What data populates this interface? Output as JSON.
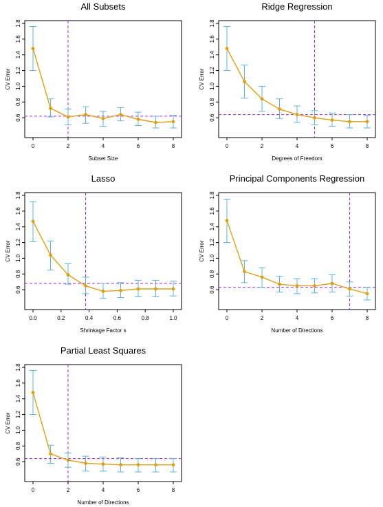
{
  "colors": {
    "line": "#E69F00",
    "errorbar": "#56B4E9",
    "reference": "#A020F0",
    "axis": "#000000"
  },
  "chart_data": [
    {
      "type": "line",
      "title": "All Subsets",
      "xlabel": "Subset Size",
      "ylabel": "CV Error",
      "xlim": [
        0,
        8
      ],
      "ylim": [
        0.4,
        1.8
      ],
      "xticks": [
        "0",
        "2",
        "4",
        "6",
        "8"
      ],
      "yticks": [
        "0.6",
        "0.8",
        "1.0",
        "1.2",
        "1.4",
        "1.6",
        "1.8"
      ],
      "x": [
        0,
        1,
        2,
        3,
        4,
        5,
        6,
        7,
        8
      ],
      "y": [
        1.48,
        0.72,
        0.61,
        0.64,
        0.59,
        0.64,
        0.58,
        0.54,
        0.55
      ],
      "err_low": [
        1.2,
        0.61,
        0.51,
        0.53,
        0.49,
        0.56,
        0.5,
        0.47,
        0.47
      ],
      "err_high": [
        1.76,
        0.84,
        0.71,
        0.74,
        0.68,
        0.73,
        0.67,
        0.62,
        0.63
      ],
      "hline": 0.62,
      "vline": 2
    },
    {
      "type": "line",
      "title": "Ridge Regression",
      "xlabel": "Degrees of Freedom",
      "ylabel": "CV Error",
      "xlim": [
        0,
        8
      ],
      "ylim": [
        0.4,
        1.8
      ],
      "xticks": [
        "0",
        "2",
        "4",
        "6",
        "8"
      ],
      "yticks": [
        "0.6",
        "0.8",
        "1.0",
        "1.2",
        "1.4",
        "1.6",
        "1.8"
      ],
      "x": [
        0,
        1,
        2,
        3,
        4,
        5,
        6,
        7,
        8
      ],
      "y": [
        1.48,
        1.06,
        0.84,
        0.71,
        0.64,
        0.6,
        0.57,
        0.55,
        0.55
      ],
      "err_low": [
        1.2,
        0.85,
        0.68,
        0.59,
        0.54,
        0.51,
        0.49,
        0.47,
        0.47
      ],
      "err_high": [
        1.76,
        1.27,
        1.0,
        0.84,
        0.75,
        0.69,
        0.66,
        0.64,
        0.63
      ],
      "hline": 0.64,
      "vline": 5
    },
    {
      "type": "line",
      "title": "Lasso",
      "xlabel": "Shrinkage Factor s",
      "ylabel": "CV Error",
      "xlim": [
        0,
        1
      ],
      "ylim": [
        0.4,
        1.8
      ],
      "xticks": [
        "0.0",
        "0.2",
        "0.4",
        "0.6",
        "0.8",
        "1.0"
      ],
      "yticks": [
        "0.6",
        "0.8",
        "1.0",
        "1.2",
        "1.4",
        "1.6",
        "1.8"
      ],
      "x": [
        0,
        0.125,
        0.25,
        0.375,
        0.5,
        0.625,
        0.75,
        0.875,
        1.0
      ],
      "y": [
        1.47,
        1.04,
        0.79,
        0.65,
        0.58,
        0.59,
        0.61,
        0.61,
        0.61
      ],
      "err_low": [
        1.21,
        0.85,
        0.67,
        0.55,
        0.49,
        0.5,
        0.51,
        0.51,
        0.52
      ],
      "err_high": [
        1.72,
        1.22,
        0.93,
        0.76,
        0.68,
        0.69,
        0.72,
        0.72,
        0.71
      ],
      "hline": 0.68,
      "vline": 0.375
    },
    {
      "type": "line",
      "title": "Principal Components Regression",
      "xlabel": "Number of Directions",
      "ylabel": "CV Error",
      "xlim": [
        0,
        8
      ],
      "ylim": [
        0.4,
        1.8
      ],
      "xticks": [
        "0",
        "2",
        "4",
        "6",
        "8"
      ],
      "yticks": [
        "0.6",
        "0.8",
        "1.0",
        "1.2",
        "1.4",
        "1.6",
        "1.8"
      ],
      "x": [
        0,
        1,
        2,
        3,
        4,
        5,
        6,
        7,
        8
      ],
      "y": [
        1.48,
        0.83,
        0.76,
        0.67,
        0.65,
        0.65,
        0.68,
        0.61,
        0.55
      ],
      "err_low": [
        1.2,
        0.69,
        0.63,
        0.57,
        0.55,
        0.56,
        0.57,
        0.52,
        0.47
      ],
      "err_high": [
        1.75,
        0.97,
        0.88,
        0.77,
        0.74,
        0.74,
        0.79,
        0.7,
        0.63
      ],
      "hline": 0.63,
      "vline": 7
    },
    {
      "type": "line",
      "title": "Partial Least Squares",
      "xlabel": "Number of  Directions",
      "ylabel": "CV Error",
      "xlim": [
        0,
        8
      ],
      "ylim": [
        0.4,
        1.8
      ],
      "xticks": [
        "0",
        "2",
        "4",
        "6",
        "8"
      ],
      "yticks": [
        "0.6",
        "0.8",
        "1.0",
        "1.2",
        "1.4",
        "1.6",
        "1.8"
      ],
      "x": [
        0,
        1,
        2,
        3,
        4,
        5,
        6,
        7,
        8
      ],
      "y": [
        1.48,
        0.7,
        0.62,
        0.58,
        0.57,
        0.56,
        0.56,
        0.56,
        0.56
      ],
      "err_low": [
        1.2,
        0.58,
        0.53,
        0.48,
        0.48,
        0.47,
        0.47,
        0.47,
        0.47
      ],
      "err_high": [
        1.76,
        0.81,
        0.71,
        0.67,
        0.66,
        0.65,
        0.64,
        0.64,
        0.64
      ],
      "hline": 0.64,
      "vline": 2
    }
  ]
}
